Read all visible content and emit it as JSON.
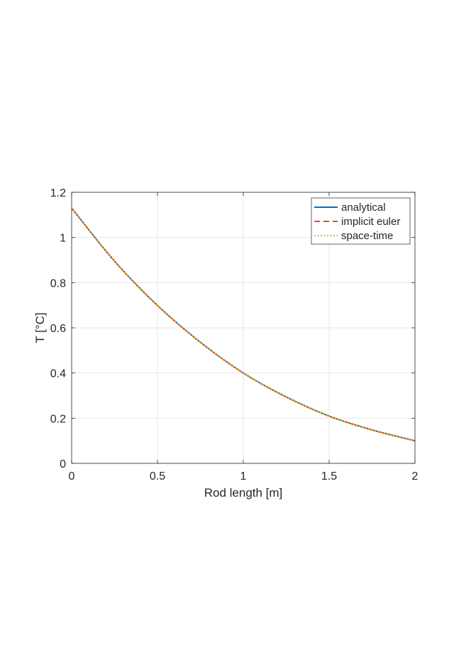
{
  "chart_data": {
    "type": "line",
    "xlabel": "Rod length [m]",
    "ylabel": "T [°C]",
    "xlim": [
      0,
      2
    ],
    "ylim": [
      0,
      1.2
    ],
    "x_ticks": [
      "0",
      "0.5",
      "1",
      "1.5",
      "2"
    ],
    "y_ticks": [
      "0",
      "0.2",
      "0.4",
      "0.6",
      "0.8",
      "1",
      "1.2"
    ],
    "grid": true,
    "legend_position": "top-right",
    "x": [
      0,
      0.25,
      0.5,
      0.75,
      1.0,
      1.25,
      1.5,
      1.75,
      2.0
    ],
    "series": [
      {
        "name": "analytical",
        "style": "solid",
        "color": "#0072BD",
        "values": [
          1.13,
          0.895,
          0.699,
          0.536,
          0.4,
          0.294,
          0.209,
          0.148,
          0.1
        ]
      },
      {
        "name": "implicit euler",
        "style": "dashed",
        "color": "#D95319",
        "values": [
          1.13,
          0.895,
          0.699,
          0.536,
          0.4,
          0.294,
          0.209,
          0.148,
          0.1
        ]
      },
      {
        "name": "space-time",
        "style": "dotted",
        "color": "#EDB120",
        "values": [
          1.13,
          0.895,
          0.699,
          0.536,
          0.4,
          0.294,
          0.209,
          0.148,
          0.1
        ]
      }
    ]
  }
}
